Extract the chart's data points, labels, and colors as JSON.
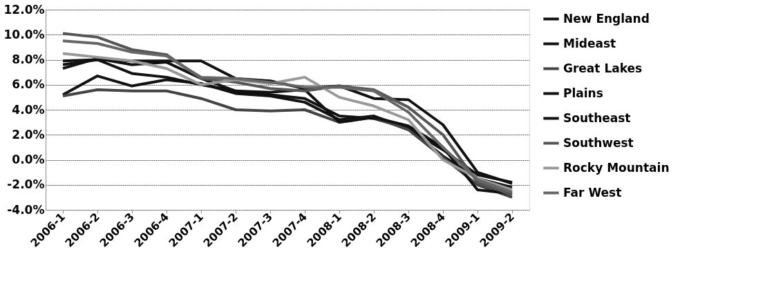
{
  "chart_data": {
    "type": "line",
    "categories": [
      "2006-1",
      "2006-2",
      "2006-3",
      "2006-4",
      "2007-1",
      "2007-2",
      "2007-3",
      "2007-4",
      "2008-1",
      "2008-2",
      "2008-3",
      "2008-4",
      "2009-1",
      "2009-2"
    ],
    "ylim": [
      -4,
      12
    ],
    "yticks": [
      {
        "value": -4,
        "label": "-4.0%"
      },
      {
        "value": -2,
        "label": "-2.0%"
      },
      {
        "value": 0,
        "label": "0.0%"
      },
      {
        "value": 2,
        "label": "2.0%"
      },
      {
        "value": 4,
        "label": "4.0%"
      },
      {
        "value": 6,
        "label": "6.0%"
      },
      {
        "value": 8,
        "label": "8.0%"
      },
      {
        "value": 10,
        "label": "10.0%"
      },
      {
        "value": 12,
        "label": "12.0%"
      }
    ],
    "grid": "y",
    "legend": "right",
    "marker": "none",
    "line_style": "solid",
    "series": [
      {
        "name": "New England",
        "color": "#111111",
        "values": [
          5.2,
          6.7,
          5.9,
          6.4,
          6.1,
          5.3,
          5.1,
          4.6,
          3.2,
          3.5,
          2.5,
          0.3,
          -1.5,
          -2.2
        ]
      },
      {
        "name": "Mideast",
        "color": "#111111",
        "values": [
          7.6,
          8.0,
          6.9,
          6.6,
          6.0,
          5.5,
          5.2,
          4.9,
          3.5,
          3.3,
          2.5,
          0.8,
          -1.2,
          -1.8
        ]
      },
      {
        "name": "Great Lakes",
        "color": "#444444",
        "values": [
          5.1,
          5.6,
          5.5,
          5.5,
          4.9,
          4.0,
          3.9,
          4.0,
          3.0,
          3.4,
          2.4,
          0.2,
          -2.0,
          -3.0
        ]
      },
      {
        "name": "Plains",
        "color": "#111111",
        "values": [
          7.9,
          8.0,
          7.9,
          7.9,
          7.9,
          6.5,
          6.3,
          5.7,
          5.9,
          4.9,
          4.8,
          2.8,
          -1.0,
          -1.9
        ]
      },
      {
        "name": "Southeast",
        "color": "#111111",
        "values": [
          7.3,
          8.1,
          7.6,
          7.8,
          6.5,
          5.5,
          5.4,
          5.6,
          3.0,
          3.4,
          2.7,
          1.0,
          -2.4,
          -2.7
        ]
      },
      {
        "name": "Southwest",
        "color": "#555555",
        "values": [
          10.1,
          9.8,
          8.8,
          8.4,
          6.5,
          6.2,
          5.7,
          5.5,
          5.9,
          5.6,
          4.2,
          2.0,
          -1.8,
          -2.8
        ]
      },
      {
        "name": "Rocky Mountain",
        "color": "#999999",
        "values": [
          8.5,
          8.2,
          7.9,
          7.3,
          6.0,
          6.4,
          6.1,
          6.6,
          5.0,
          4.3,
          3.2,
          0.0,
          -1.5,
          -2.4
        ]
      },
      {
        "name": "Far West",
        "color": "#666666",
        "values": [
          9.5,
          9.3,
          8.6,
          8.3,
          6.6,
          6.5,
          6.2,
          5.8,
          5.8,
          5.5,
          3.8,
          1.0,
          -1.6,
          -2.6
        ]
      }
    ]
  }
}
